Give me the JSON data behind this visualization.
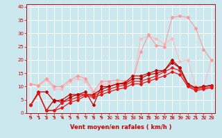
{
  "xlabel": "Vent moyen/en rafales ( km/h )",
  "background_color": "#cbe8ee",
  "grid_color": "#ffffff",
  "xlim": [
    -0.5,
    23.5
  ],
  "ylim": [
    0,
    41
  ],
  "yticks": [
    0,
    5,
    10,
    15,
    20,
    25,
    30,
    35,
    40
  ],
  "xticks": [
    0,
    1,
    2,
    3,
    4,
    5,
    6,
    7,
    8,
    9,
    10,
    11,
    12,
    13,
    14,
    15,
    16,
    17,
    18,
    19,
    20,
    21,
    22,
    23
  ],
  "series": [
    {
      "x": [
        0,
        1,
        2,
        3,
        4,
        5,
        6,
        7,
        8,
        9,
        10,
        11,
        12,
        13,
        14,
        15,
        16,
        17,
        18,
        19,
        20,
        21,
        22,
        23
      ],
      "y": [
        11,
        10,
        12.5,
        9,
        9,
        12,
        13,
        12,
        7,
        11,
        11,
        11.5,
        11,
        11.5,
        28,
        29,
        28,
        26,
        28,
        19.5,
        20,
        10,
        10,
        20
      ],
      "color": "#ffbbbb",
      "linewidth": 0.8,
      "markersize": 2.0,
      "marker": "D",
      "zorder": 2
    },
    {
      "x": [
        0,
        1,
        2,
        3,
        4,
        5,
        6,
        7,
        8,
        9,
        10,
        11,
        12,
        13,
        14,
        15,
        16,
        17,
        18,
        19,
        20,
        21,
        22,
        23
      ],
      "y": [
        11,
        10.5,
        13,
        10,
        10,
        12.5,
        14,
        13,
        8,
        12,
        12,
        12.5,
        12,
        12.5,
        23,
        29.5,
        25.5,
        25,
        36,
        36.5,
        36,
        32,
        24,
        20
      ],
      "color": "#ff9999",
      "linewidth": 0.8,
      "markersize": 2.0,
      "marker": "D",
      "zorder": 2
    },
    {
      "x": [
        0,
        1,
        2,
        3,
        4,
        5,
        6,
        7,
        8,
        9,
        10,
        11,
        12,
        13,
        14,
        15,
        16,
        17,
        18,
        19,
        20,
        21,
        22,
        23
      ],
      "y": [
        3,
        8,
        8,
        4.5,
        5,
        7,
        7,
        8,
        3,
        10,
        10,
        11,
        11.5,
        14,
        14,
        15,
        16,
        16,
        20,
        17,
        11,
        9.5,
        10,
        10.5
      ],
      "color": "#cc0000",
      "linewidth": 0.9,
      "markersize": 2.0,
      "marker": "D",
      "zorder": 3
    },
    {
      "x": [
        0,
        1,
        2,
        3,
        4,
        5,
        6,
        7,
        8,
        9,
        10,
        11,
        12,
        13,
        14,
        15,
        16,
        17,
        18,
        19,
        20,
        21,
        22,
        23
      ],
      "y": [
        3,
        7.5,
        1,
        5,
        4,
        6,
        7,
        7,
        7,
        9,
        10,
        11,
        11,
        13,
        13,
        14.5,
        15,
        16,
        19,
        17,
        11,
        9.5,
        10,
        10.5
      ],
      "color": "#bb0000",
      "linewidth": 0.9,
      "markersize": 2.0,
      "marker": "D",
      "zorder": 3
    },
    {
      "x": [
        0,
        1,
        2,
        3,
        4,
        5,
        6,
        7,
        8,
        9,
        10,
        11,
        12,
        13,
        14,
        15,
        16,
        17,
        18,
        19,
        20,
        21,
        22,
        23
      ],
      "y": [
        3,
        7.5,
        1,
        1,
        4,
        5,
        6,
        7,
        6.5,
        8,
        9,
        10,
        10.5,
        12,
        12,
        13,
        14,
        15.5,
        17,
        16,
        10.5,
        9,
        9.5,
        10
      ],
      "color": "#dd2222",
      "linewidth": 0.9,
      "markersize": 2.0,
      "marker": "D",
      "zorder": 3
    },
    {
      "x": [
        0,
        1,
        2,
        3,
        4,
        5,
        6,
        7,
        8,
        9,
        10,
        11,
        12,
        13,
        14,
        15,
        16,
        17,
        18,
        19,
        20,
        21,
        22,
        23
      ],
      "y": [
        3,
        7.5,
        1,
        1,
        2,
        4,
        5,
        6.5,
        6,
        7,
        8,
        9,
        9.5,
        11,
        11,
        12,
        13,
        14,
        15.5,
        14.5,
        10,
        8.5,
        9,
        9.5
      ],
      "color": "#ee1111",
      "linewidth": 0.9,
      "markersize": 2.0,
      "marker": "D",
      "zorder": 3
    }
  ],
  "tick_color": "#cc0000",
  "label_fontsize": 5,
  "xlabel_fontsize": 6
}
